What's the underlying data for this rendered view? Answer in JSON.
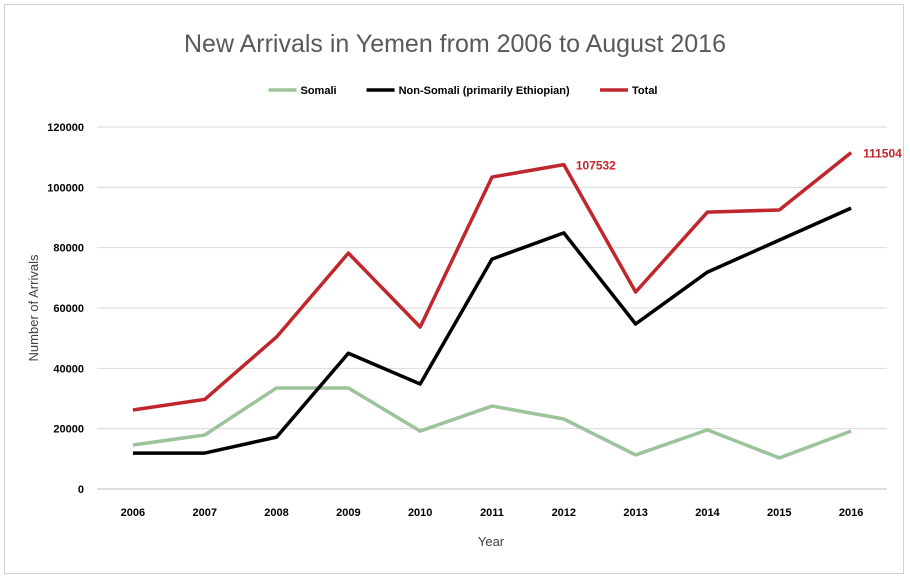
{
  "chart_data": {
    "type": "line",
    "title": "New Arrivals in Yemen from 2006 to August 2016",
    "xlabel": "Year",
    "ylabel": "Number of Arrivals",
    "ylim": [
      0,
      120000
    ],
    "yticks": [
      "0",
      "20000",
      "40000",
      "60000",
      "80000",
      "100000",
      "120000"
    ],
    "ytick_values": [
      0,
      20000,
      40000,
      60000,
      80000,
      100000,
      120000
    ],
    "grid": true,
    "legend_position": "top",
    "categories": [
      "2006",
      "2007",
      "2008",
      "2009",
      "2010",
      "2011",
      "2012",
      "2013",
      "2014",
      "2015",
      "2016"
    ],
    "series": [
      {
        "name": "Somali",
        "color": "#9dc39a",
        "values": [
          14600,
          17900,
          33500,
          33500,
          19200,
          27500,
          23200,
          11300,
          19600,
          10300,
          19200
        ]
      },
      {
        "name": "Non-Somali (primarily Ethiopian)",
        "color": "#000000",
        "values": [
          11900,
          11900,
          17200,
          45000,
          34800,
          76200,
          84900,
          54700,
          71900,
          82500,
          93100
        ]
      },
      {
        "name": "Total",
        "color": "#c0272d",
        "values": [
          26200,
          29700,
          50400,
          78200,
          53700,
          103400,
          107532,
          65300,
          91800,
          92500,
          111504
        ]
      }
    ],
    "annotations": [
      {
        "text": "107532",
        "category": "2012",
        "series": "Total"
      },
      {
        "text": "111504",
        "category": "2016",
        "series": "Total"
      }
    ]
  }
}
